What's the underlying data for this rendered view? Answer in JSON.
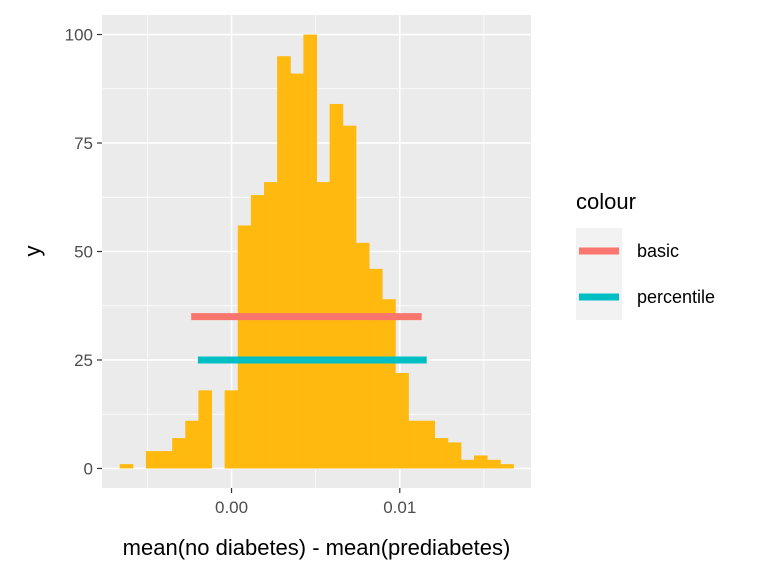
{
  "chart_data": {
    "type": "bar",
    "title": "",
    "xlabel": "mean(no diabetes) - mean(prediabetes)",
    "ylabel": "y",
    "xlim": [
      -0.0077,
      0.0178
    ],
    "ylim": [
      -4.5,
      104.5
    ],
    "x_ticks": [
      0.0,
      0.01
    ],
    "x_tick_labels": [
      "0.00",
      "0.01"
    ],
    "y_ticks": [
      0,
      25,
      50,
      75,
      100
    ],
    "y_tick_labels": [
      "0",
      "25",
      "50",
      "75",
      "100"
    ],
    "grid": true,
    "legend_placement": "right",
    "histogram": {
      "bin_width": 0.00078,
      "color": "#FFB90F",
      "bins": [
        {
          "x0": -0.00665,
          "count": 1
        },
        {
          "x0": -0.00509,
          "count": 4
        },
        {
          "x0": -0.00431,
          "count": 4
        },
        {
          "x0": -0.00353,
          "count": 7
        },
        {
          "x0": -0.00275,
          "count": 11
        },
        {
          "x0": -0.00197,
          "count": 18
        },
        {
          "x0": -0.00041,
          "count": 18
        },
        {
          "x0": 0.00037,
          "count": 56
        },
        {
          "x0": 0.00115,
          "count": 63
        },
        {
          "x0": 0.00193,
          "count": 66
        },
        {
          "x0": 0.00271,
          "count": 95
        },
        {
          "x0": 0.00349,
          "count": 91
        },
        {
          "x0": 0.00427,
          "count": 100
        },
        {
          "x0": 0.00505,
          "count": 66
        },
        {
          "x0": 0.00583,
          "count": 84
        },
        {
          "x0": 0.00661,
          "count": 79
        },
        {
          "x0": 0.00739,
          "count": 52
        },
        {
          "x0": 0.00817,
          "count": 46
        },
        {
          "x0": 0.00895,
          "count": 39
        },
        {
          "x0": 0.00973,
          "count": 22
        },
        {
          "x0": 0.01051,
          "count": 11
        },
        {
          "x0": 0.01129,
          "count": 11
        },
        {
          "x0": 0.01207,
          "count": 7
        },
        {
          "x0": 0.01285,
          "count": 6
        },
        {
          "x0": 0.01363,
          "count": 2
        },
        {
          "x0": 0.01441,
          "count": 3
        },
        {
          "x0": 0.01519,
          "count": 2
        },
        {
          "x0": 0.01597,
          "count": 1
        }
      ]
    },
    "legend_title": "colour",
    "series": [
      {
        "name": "basic",
        "color": "#F8766D",
        "x": [
          -0.0024,
          0.0113
        ],
        "y": 35
      },
      {
        "name": "percentile",
        "color": "#00BFC4",
        "x": [
          -0.002,
          0.0116
        ],
        "y": 25
      }
    ]
  }
}
